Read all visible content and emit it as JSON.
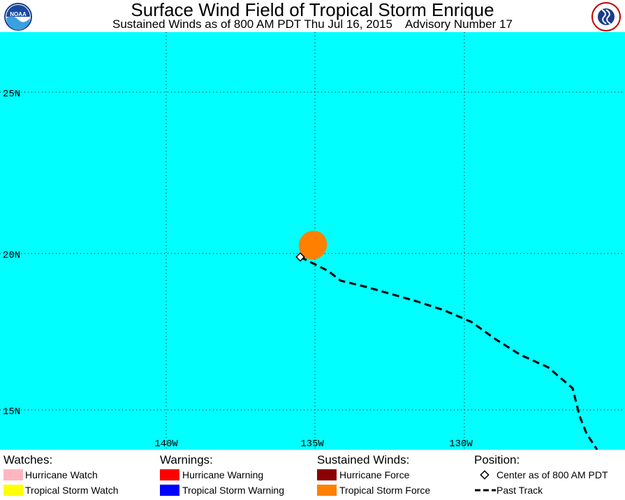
{
  "header": {
    "title": "Surface Wind Field of Tropical Storm Enrique",
    "subtitle": "Sustained Winds as of 800 AM PDT Thu Jul 16, 2015    Advisory Number 17",
    "left_logo_text": "NOAA",
    "left_logo_icon": "noaa-logo-icon",
    "right_logo_icon": "nws-logo-icon"
  },
  "map": {
    "ocean_color": "#00FFFF",
    "grid": true,
    "lat_labels": [
      "25N",
      "20N",
      "15N"
    ],
    "lon_labels": [
      "140W",
      "135W",
      "130W"
    ],
    "storm": {
      "center_lat": 19.9,
      "center_lon": -135.2,
      "wind_field_color": "#FF8000"
    }
  },
  "legend": {
    "watches": {
      "title": "Watches:",
      "items": [
        {
          "label": "Hurricane Watch",
          "color": "#FFB6C1"
        },
        {
          "label": "Tropical Storm Watch",
          "color": "#FFFF00"
        }
      ]
    },
    "warnings": {
      "title": "Warnings:",
      "items": [
        {
          "label": "Hurricane Warning",
          "color": "#FF0000"
        },
        {
          "label": "Tropical Storm Warning",
          "color": "#0000FF"
        }
      ]
    },
    "winds": {
      "title": "Sustained Winds:",
      "items": [
        {
          "label": "Hurricane Force",
          "color": "#8B0000"
        },
        {
          "label": "Tropical Storm Force",
          "color": "#FF8000"
        }
      ]
    },
    "position": {
      "title": "Position:",
      "items": [
        {
          "label": "Center as of 800 AM PDT",
          "icon": "diamond-marker-icon"
        },
        {
          "label": "Past Track",
          "icon": "dashed-line-icon"
        }
      ]
    }
  }
}
